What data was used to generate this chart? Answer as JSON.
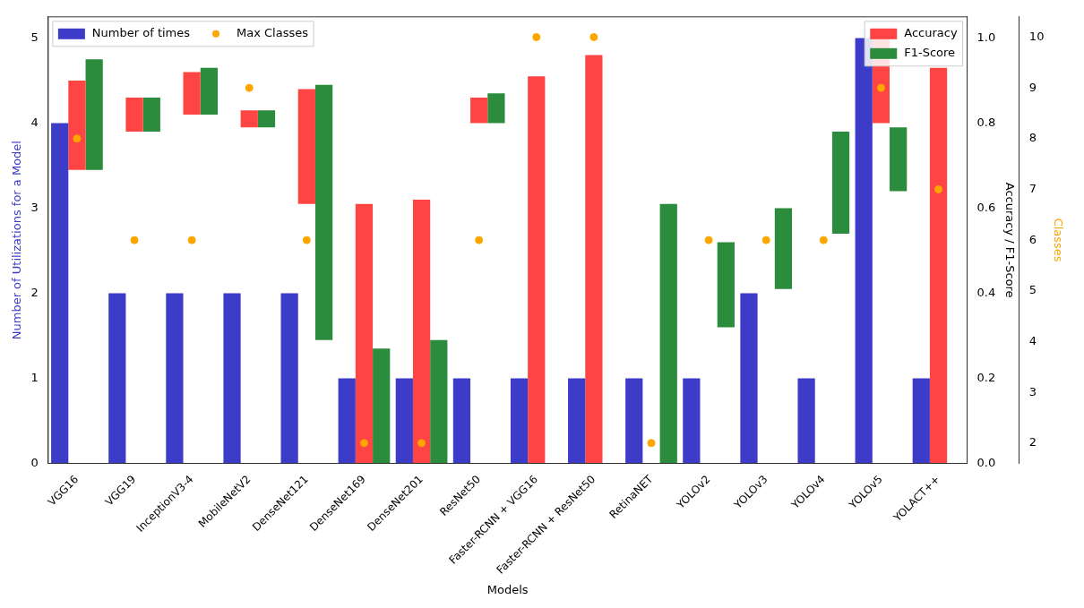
{
  "chart_data": {
    "type": "bar",
    "xlabel": "Models",
    "ylabel": "Number of Utilizations for a Model",
    "y2label": "Accuracy / F1-Score",
    "y3label": "Classes",
    "categories": [
      "VGG16",
      "VGG19",
      "InceptionV3-4",
      "MobileNetV2",
      "DenseNet121",
      "DenseNet169",
      "DenseNet201",
      "ResNet50",
      "Faster-RCNN + VGG16",
      "Faster-RCNN + ResNet50",
      "RetinaNET",
      "YOLOv2",
      "YOLOv3",
      "YOLOv4",
      "YOLOv5",
      "YOLACT++"
    ],
    "series": [
      {
        "name": "Number of times",
        "color": "#3c3cc8",
        "axis": "y",
        "values": [
          4,
          2,
          2,
          2,
          2,
          1,
          1,
          1,
          1,
          1,
          1,
          1,
          2,
          1,
          5,
          1
        ]
      },
      {
        "name": "Accuracy",
        "color": "#ff4444",
        "axis": "y2",
        "base": [
          0.69,
          0.78,
          0.82,
          0.79,
          0.61,
          0,
          0,
          0.8,
          0,
          0,
          null,
          null,
          null,
          null,
          0.8,
          0
        ],
        "values": [
          0.21,
          0.08,
          0.1,
          0.04,
          0.27,
          0.61,
          0.62,
          0.06,
          0.91,
          0.96,
          null,
          null,
          null,
          null,
          0.2,
          0.93
        ]
      },
      {
        "name": "F1-Score",
        "color": "#2a8c3c",
        "axis": "y2",
        "base": [
          0.69,
          0.78,
          0.82,
          0.79,
          0.29,
          0,
          0,
          0.8,
          null,
          null,
          0,
          0.32,
          0.41,
          0.54,
          0.64,
          null
        ],
        "values": [
          0.26,
          0.08,
          0.11,
          0.04,
          0.6,
          0.27,
          0.29,
          0.07,
          null,
          null,
          0.61,
          0.2,
          0.19,
          0.24,
          0.15,
          null
        ]
      },
      {
        "name": "Max Classes",
        "type": "scatter",
        "marker": "circle",
        "color": "#ffa500",
        "axis": "y3",
        "values": [
          8,
          6,
          6,
          9,
          6,
          2,
          2,
          6,
          10,
          10,
          2,
          6,
          6,
          6,
          9,
          7
        ]
      }
    ],
    "ylim": [
      0,
      5.25
    ],
    "yticks": [
      0,
      1,
      2,
      3,
      4,
      5
    ],
    "y2lim": [
      0,
      1.05
    ],
    "y2ticks": [
      {
        "value": 0,
        "label": "0.0"
      },
      {
        "value": 0.2,
        "label": "0.2"
      },
      {
        "value": 0.4,
        "label": "0.4"
      },
      {
        "value": 0.6,
        "label": "0.6"
      },
      {
        "value": 0.8,
        "label": "0.8"
      },
      {
        "value": 1,
        "label": "1.0"
      }
    ],
    "y3lim": [
      1.6,
      10.4
    ],
    "y3ticks": [
      2,
      3,
      4,
      5,
      6,
      7,
      8,
      9,
      10
    ],
    "legend": "top",
    "grid": false
  }
}
